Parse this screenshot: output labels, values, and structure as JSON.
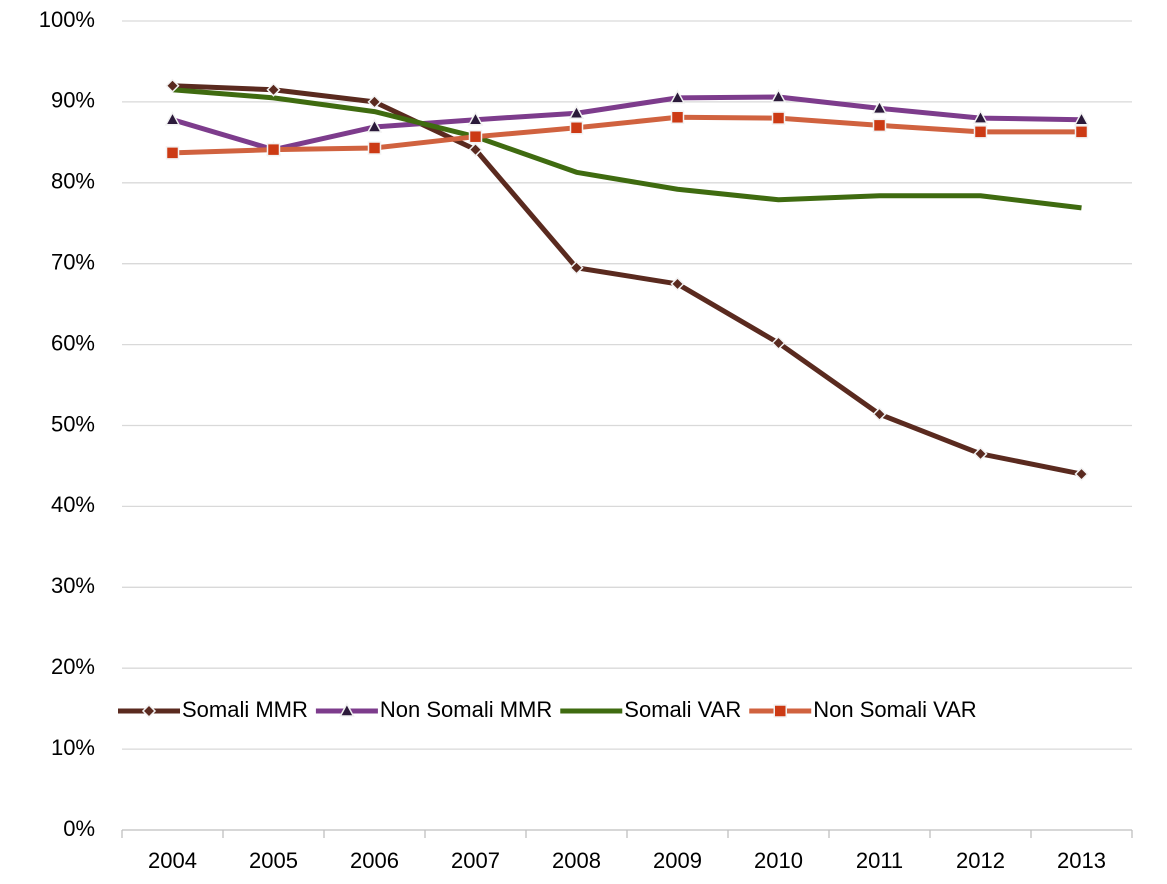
{
  "chart_data": {
    "type": "line",
    "categories": [
      "2004",
      "2005",
      "2006",
      "2007",
      "2008",
      "2009",
      "2010",
      "2011",
      "2012",
      "2013"
    ],
    "series": [
      {
        "name": "Somali MMR",
        "color": "#5a2a1f",
        "marker": "diamond",
        "values": [
          92.0,
          91.5,
          90.0,
          84.1,
          69.5,
          67.5,
          60.2,
          51.4,
          46.5,
          44.0
        ]
      },
      {
        "name": "Non Somali MMR",
        "color": "#7d3c8c",
        "marker": "triangle",
        "values": [
          87.8,
          84.1,
          86.9,
          87.8,
          88.6,
          90.5,
          90.6,
          89.2,
          88.0,
          87.8
        ]
      },
      {
        "name": "Somali VAR",
        "color": "#3f6b10",
        "marker": "none",
        "values": [
          91.5,
          90.5,
          88.8,
          85.7,
          81.3,
          79.2,
          77.9,
          78.4,
          78.4,
          76.9
        ]
      },
      {
        "name": "Non Somali VAR",
        "color": "#d0623f",
        "marker": "square",
        "values": [
          83.7,
          84.1,
          84.3,
          85.7,
          86.8,
          88.1,
          88.0,
          87.1,
          86.3,
          86.3
        ]
      }
    ],
    "ylim": [
      0,
      100
    ],
    "yticks": [
      {
        "value": 0,
        "label": "0%"
      },
      {
        "value": 10,
        "label": "10%"
      },
      {
        "value": 20,
        "label": "20%"
      },
      {
        "value": 30,
        "label": "30%"
      },
      {
        "value": 40,
        "label": "40%"
      },
      {
        "value": 50,
        "label": "50%"
      },
      {
        "value": 60,
        "label": "60%"
      },
      {
        "value": 70,
        "label": "70%"
      },
      {
        "value": 80,
        "label": "80%"
      },
      {
        "value": 90,
        "label": "90%"
      },
      {
        "value": 100,
        "label": "100%"
      }
    ],
    "grid": true,
    "legend": "bottom"
  }
}
